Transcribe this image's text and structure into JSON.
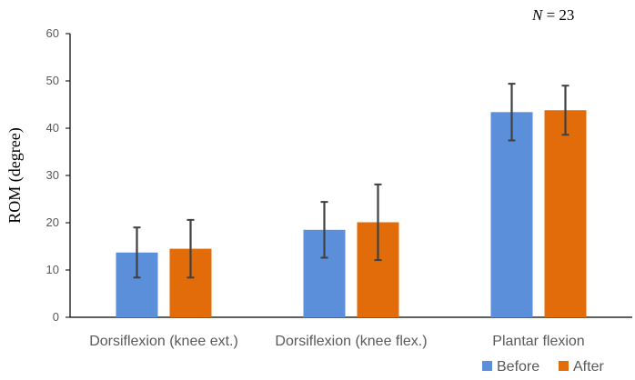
{
  "chart_data": {
    "type": "bar",
    "title": "",
    "annotation": {
      "n_symbol": "N",
      "n_rest": " = 23"
    },
    "xlabel": "",
    "ylabel": "ROM (degree)",
    "ylim": [
      0,
      60
    ],
    "yticks": [
      0,
      10,
      20,
      30,
      40,
      50,
      60
    ],
    "grid": false,
    "legend_position": "bottom-right",
    "categories": [
      "Dorsiflexion (knee ext.)",
      "Dorsiflexion (knee flex.)",
      "Plantar flexion"
    ],
    "series": [
      {
        "name": "Before",
        "color": "#5B8FD9",
        "values": [
          13.7,
          18.5,
          43.4
        ],
        "error": [
          5.3,
          5.9,
          6.0
        ]
      },
      {
        "name": "After",
        "color": "#E36C0A",
        "values": [
          14.5,
          20.1,
          43.8
        ],
        "error": [
          6.1,
          8.0,
          5.2
        ]
      }
    ]
  }
}
